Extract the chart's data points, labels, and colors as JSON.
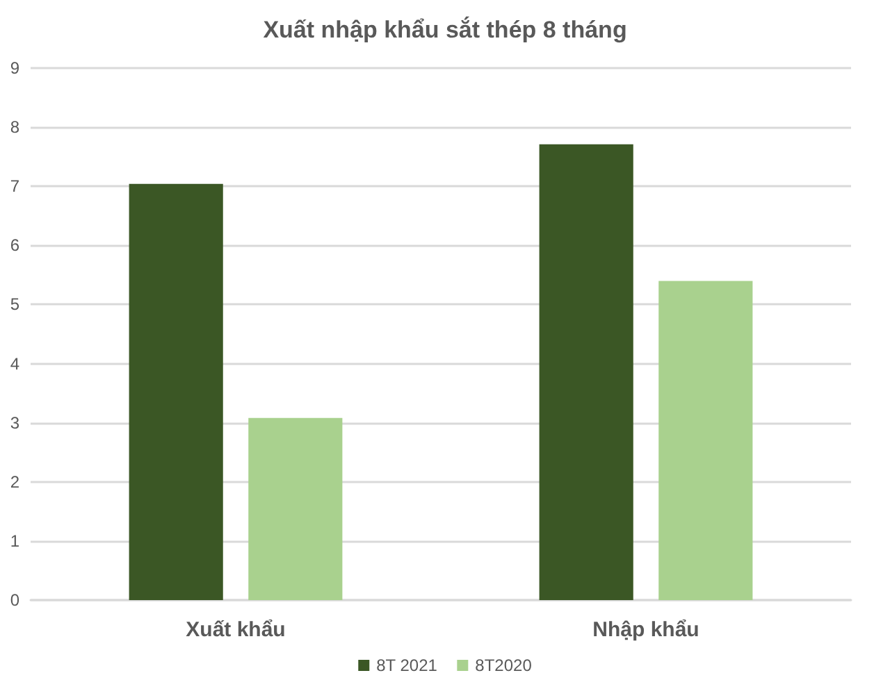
{
  "chart_data": {
    "type": "bar",
    "title": "Xuất nhập khẩu sắt thép 8 tháng",
    "categories": [
      "Xuất khẩu",
      "Nhập khẩu"
    ],
    "series": [
      {
        "name": "8T 2021",
        "color": "#3b5725",
        "values": [
          7.04,
          7.71
        ]
      },
      {
        "name": "8T2020",
        "color": "#a9d18e",
        "values": [
          3.08,
          5.4
        ]
      }
    ],
    "ylim": [
      0,
      9
    ],
    "yticks": [
      0,
      1,
      2,
      3,
      4,
      5,
      6,
      7,
      8,
      9
    ],
    "grid": "y",
    "legend": "bottom"
  }
}
